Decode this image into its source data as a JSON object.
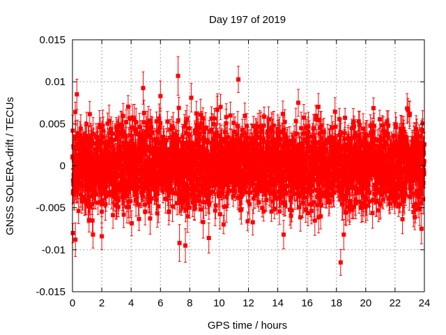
{
  "chart_data": {
    "type": "scatter",
    "title": "Day 197 of 2019",
    "xlabel": "GPS time / hours",
    "ylabel": "GNSS SOLERA-drift / TECUs",
    "xlim": [
      0,
      24
    ],
    "ylim": [
      -0.015,
      0.015
    ],
    "x_ticks": [
      0,
      2,
      4,
      6,
      8,
      10,
      12,
      14,
      16,
      18,
      20,
      22,
      24
    ],
    "x_tick_labels": [
      "0",
      "2",
      "4",
      "6",
      "8",
      "10",
      "12",
      "14",
      "16",
      "18",
      "20",
      "22",
      "24"
    ],
    "y_ticks": [
      -0.015,
      -0.01,
      -0.005,
      0,
      0.005,
      0.01,
      0.015
    ],
    "y_tick_labels": [
      "-0.015",
      "-0.01",
      "-0.005",
      "0",
      "0.005",
      "0.01",
      "0.015"
    ],
    "grid": true,
    "series": [
      {
        "name": "SOLERA drift",
        "color": "#ff0000",
        "marker": "square",
        "error_bars": true,
        "description": "dense scatter of ~2880 points spanning 0–24 h, centered near 0",
        "core_std": 0.0024,
        "typical_error": 0.0015,
        "notable_points": [
          {
            "x": 7.2,
            "y": 0.0107,
            "err": 0.0023
          },
          {
            "x": 0.3,
            "y": 0.0085,
            "err": 0.0018
          },
          {
            "x": 8.1,
            "y": 0.0081,
            "err": 0.0017
          },
          {
            "x": 10.1,
            "y": 0.007,
            "err": 0.0015
          },
          {
            "x": 0.2,
            "y": -0.0088,
            "err": 0.002
          },
          {
            "x": 7.3,
            "y": -0.0092,
            "err": 0.0022
          },
          {
            "x": 7.7,
            "y": -0.0095,
            "err": 0.002
          },
          {
            "x": 9.3,
            "y": -0.0086,
            "err": 0.0018
          },
          {
            "x": 14.4,
            "y": -0.0082,
            "err": 0.0017
          },
          {
            "x": 18.5,
            "y": -0.0082,
            "err": 0.0018
          },
          {
            "x": 1.4,
            "y": -0.0082,
            "err": 0.0016
          },
          {
            "x": 2.0,
            "y": -0.0084,
            "err": 0.0016
          },
          {
            "x": 15.4,
            "y": 0.0075,
            "err": 0.0016
          },
          {
            "x": 6.0,
            "y": 0.0083,
            "err": 0.0018
          },
          {
            "x": 23.0,
            "y": 0.0062,
            "err": 0.0015
          },
          {
            "x": 23.8,
            "y": -0.0075,
            "err": 0.0018
          }
        ]
      }
    ]
  }
}
